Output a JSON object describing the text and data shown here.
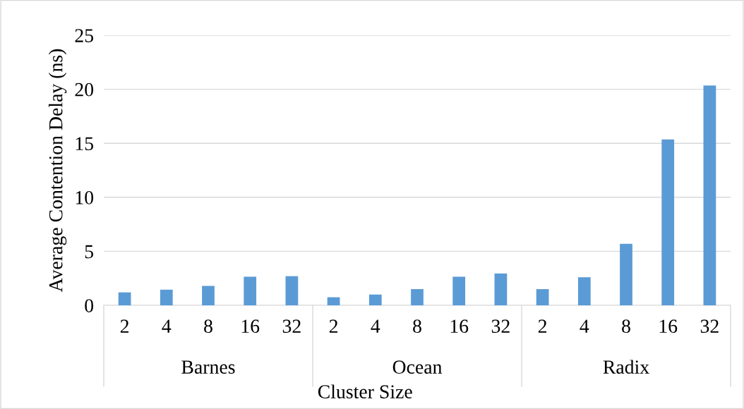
{
  "chart_data": {
    "type": "bar",
    "xlabel": "Cluster Size",
    "ylabel": "Average Contention Delay (ns)",
    "categories": [
      "2",
      "4",
      "8",
      "16",
      "32",
      "2",
      "4",
      "8",
      "16",
      "32",
      "2",
      "4",
      "8",
      "16",
      "32"
    ],
    "values": [
      1.2,
      1.45,
      1.8,
      2.65,
      2.7,
      0.75,
      1.0,
      1.5,
      2.65,
      2.95,
      1.5,
      2.6,
      5.7,
      15.35,
      20.35
    ],
    "color": "#5b9bd5",
    "ylim": [
      0,
      25
    ],
    "yticks": [
      0,
      5,
      10,
      15,
      20,
      25
    ],
    "grid": "y",
    "annotations": [
      "Barnes",
      "Ocean",
      "Radix"
    ]
  }
}
